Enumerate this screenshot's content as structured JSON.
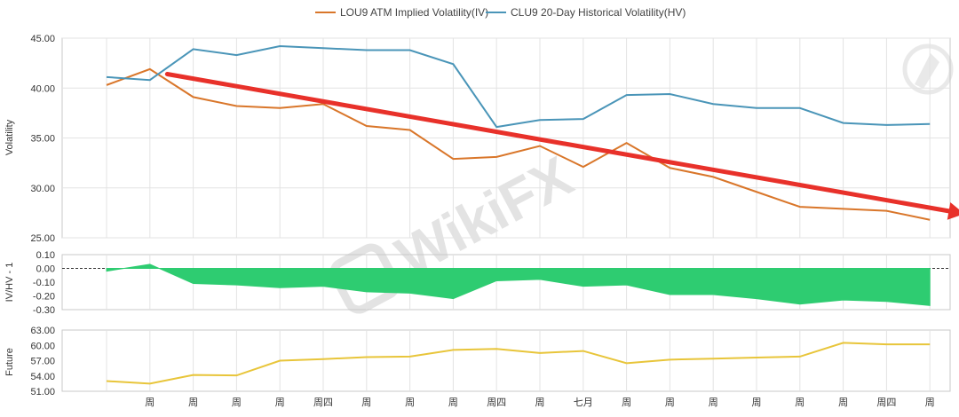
{
  "chart_data": [
    {
      "type": "line",
      "panel": "volatility",
      "ylabel": "Volatility",
      "ylim": [
        25,
        45
      ],
      "yticks": [
        "45.00",
        "40.00",
        "35.00",
        "30.00",
        "25.00"
      ],
      "ytick_values": [
        45,
        40,
        35,
        30,
        25
      ],
      "grid": true,
      "legend_placement": "top-center",
      "series": [
        {
          "name": "LOU9 ATM Implied Volatility(IV)",
          "color": "#d9762a",
          "values": [
            40.3,
            41.9,
            39.1,
            38.2,
            38.0,
            38.4,
            36.2,
            35.8,
            32.9,
            33.1,
            34.2,
            32.1,
            34.5,
            32.0,
            31.1,
            29.6,
            28.1,
            27.9,
            27.7,
            26.8
          ]
        },
        {
          "name": "CLU9 20-Day Historical Volatility(HV)",
          "color": "#4a95b8",
          "values": [
            41.1,
            40.8,
            43.9,
            43.3,
            44.2,
            44.0,
            43.8,
            43.8,
            42.4,
            36.1,
            36.8,
            36.9,
            39.3,
            39.4,
            38.4,
            38.0,
            38.0,
            36.5,
            36.3,
            36.4
          ]
        }
      ],
      "annotation": {
        "type": "arrow",
        "color": "#e8312a",
        "from": [
          1.4,
          41.4
        ],
        "to": [
          19.8,
          27.4
        ]
      }
    },
    {
      "type": "area",
      "panel": "ratio",
      "ylabel": "IV/HV - 1",
      "ylim": [
        -0.3,
        0.1
      ],
      "yticks": [
        "0.10",
        "0.00",
        "-0.10",
        "-0.20",
        "-0.30"
      ],
      "ytick_values": [
        0.1,
        0.0,
        -0.1,
        -0.2,
        -0.3
      ],
      "color": "#2ecc71",
      "values": [
        -0.02,
        0.03,
        -0.11,
        -0.12,
        -0.14,
        -0.13,
        -0.17,
        -0.18,
        -0.22,
        -0.09,
        -0.08,
        -0.13,
        -0.12,
        -0.19,
        -0.19,
        -0.22,
        -0.26,
        -0.23,
        -0.24,
        -0.27
      ]
    },
    {
      "type": "line",
      "panel": "future",
      "ylabel": "Future",
      "ylim": [
        51,
        63
      ],
      "yticks": [
        "63.00",
        "60.00",
        "57.00",
        "54.00",
        "51.00"
      ],
      "ytick_values": [
        63,
        60,
        57,
        54,
        51
      ],
      "color": "#e8c53a",
      "values": [
        53.0,
        52.5,
        54.2,
        54.1,
        57.0,
        57.3,
        57.7,
        57.8,
        59.1,
        59.3,
        58.5,
        58.9,
        56.5,
        57.2,
        57.4,
        57.6,
        57.8,
        60.5,
        60.2,
        60.2
      ]
    }
  ],
  "x_axis": {
    "labels": [
      "",
      "周",
      "周",
      "周",
      "周",
      "周四",
      "周",
      "周",
      "周",
      "周四",
      "周",
      "七月",
      "周",
      "周",
      "周",
      "周",
      "周",
      "周",
      "周四",
      "周"
    ]
  },
  "watermark": {
    "text": "WikiFX"
  }
}
